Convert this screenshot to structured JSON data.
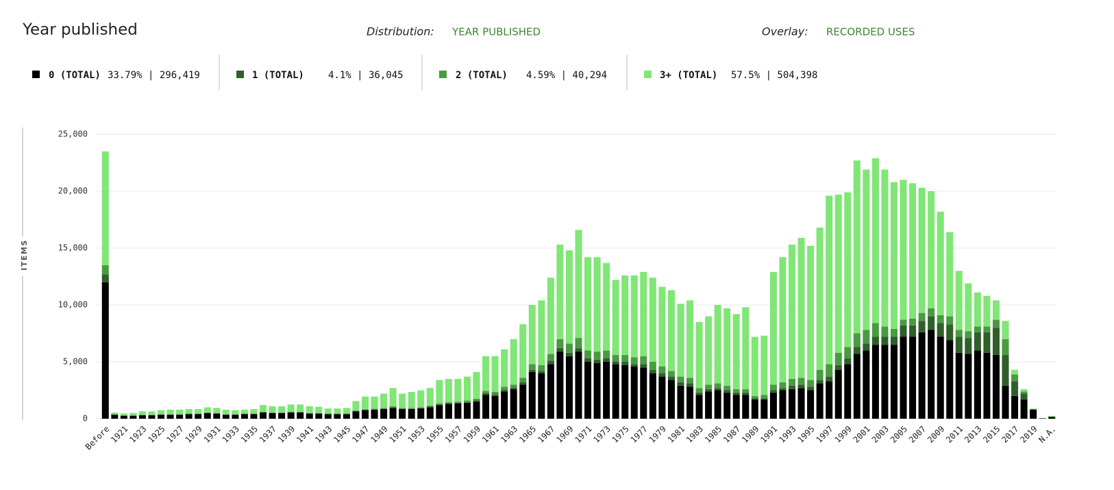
{
  "chart_data": {
    "type": "bar",
    "stacked": true,
    "title": "Year published",
    "controls": [
      {
        "label": "Distribution:",
        "value": "YEAR PUBLISHED"
      },
      {
        "label": "Overlay:",
        "value": "RECORDED USES"
      }
    ],
    "y_label": "ITEMS",
    "grid": true,
    "ylim": [
      0,
      25000
    ],
    "yticks": [
      0,
      {
        "value": 5000,
        "label": "5,000"
      },
      {
        "value": 10000,
        "label": "10,000"
      },
      {
        "value": 15000,
        "label": "15,000"
      },
      {
        "value": 20000,
        "label": "20,000"
      },
      {
        "value": 25000,
        "label": "25,000"
      }
    ],
    "categories": [
      "Before",
      null,
      "1921",
      null,
      "1923",
      null,
      "1925",
      null,
      "1927",
      null,
      "1929",
      null,
      "1931",
      null,
      "1933",
      null,
      "1935",
      null,
      "1937",
      null,
      "1939",
      null,
      "1941",
      null,
      "1943",
      null,
      "1945",
      null,
      "1947",
      null,
      "1949",
      null,
      "1951",
      null,
      "1953",
      null,
      "1955",
      null,
      "1957",
      null,
      "1959",
      null,
      "1961",
      null,
      "1963",
      null,
      "1965",
      null,
      "1967",
      null,
      "1969",
      null,
      "1971",
      null,
      "1973",
      null,
      "1975",
      null,
      "1977",
      null,
      "1979",
      null,
      "1981",
      null,
      "1983",
      null,
      "1985",
      null,
      "1987",
      null,
      "1989",
      null,
      "1991",
      null,
      "1993",
      null,
      "1995",
      null,
      "1997",
      null,
      "1999",
      null,
      "2001",
      null,
      "2003",
      null,
      "2005",
      null,
      "2007",
      null,
      "2009",
      null,
      "2011",
      null,
      "2013",
      null,
      "2015",
      null,
      "2017",
      null,
      "2019",
      null,
      "N.A."
    ],
    "series": [
      {
        "name": "0 (TOTAL)",
        "summary": "33.79% | 296,419",
        "color": "#000000",
        "values": [
          12000,
          350,
          250,
          250,
          300,
          300,
          350,
          350,
          350,
          400,
          400,
          500,
          450,
          350,
          350,
          400,
          400,
          550,
          500,
          500,
          550,
          550,
          450,
          450,
          400,
          400,
          400,
          650,
          750,
          800,
          850,
          950,
          850,
          850,
          900,
          1000,
          1200,
          1300,
          1350,
          1400,
          1500,
          2100,
          2000,
          2400,
          2600,
          3000,
          4100,
          4000,
          4800,
          5900,
          5500,
          5900,
          5000,
          4900,
          5000,
          4800,
          4700,
          4600,
          4500,
          4000,
          3700,
          3400,
          2900,
          2800,
          2100,
          2400,
          2500,
          2300,
          2100,
          2100,
          1700,
          1700,
          2300,
          2500,
          2600,
          2700,
          2500,
          3100,
          3300,
          4300,
          4800,
          5700,
          6000,
          6500,
          6500,
          6500,
          7200,
          7200,
          7600,
          7800,
          7200,
          6900,
          5800,
          5700,
          6000,
          5800,
          5600,
          2900,
          2000,
          1700,
          800,
          40,
          150
        ]
      },
      {
        "name": "1 (TOTAL)",
        "summary": "4.1% | 36,045",
        "color": "#2f5f2a",
        "values": [
          700,
          20,
          20,
          20,
          20,
          20,
          20,
          20,
          20,
          20,
          20,
          20,
          20,
          20,
          20,
          20,
          20,
          20,
          20,
          20,
          20,
          20,
          20,
          20,
          20,
          20,
          20,
          30,
          30,
          30,
          40,
          50,
          40,
          40,
          40,
          50,
          50,
          50,
          50,
          50,
          100,
          150,
          150,
          150,
          150,
          200,
          200,
          200,
          300,
          300,
          300,
          300,
          300,
          300,
          300,
          200,
          300,
          200,
          300,
          300,
          300,
          300,
          300,
          300,
          200,
          200,
          200,
          200,
          200,
          200,
          100,
          100,
          200,
          200,
          300,
          300,
          300,
          300,
          400,
          400,
          500,
          600,
          600,
          700,
          700,
          700,
          1000,
          1000,
          1000,
          1200,
          1200,
          1400,
          1400,
          1400,
          1600,
          1800,
          2400,
          2700,
          1300,
          500,
          30,
          0,
          20
        ]
      },
      {
        "name": "2 (TOTAL)",
        "summary": "4.59% | 40,294",
        "color": "#4a9a43",
        "values": [
          800,
          30,
          30,
          30,
          30,
          30,
          30,
          30,
          30,
          30,
          30,
          30,
          30,
          30,
          30,
          30,
          30,
          30,
          30,
          30,
          30,
          30,
          30,
          30,
          30,
          30,
          30,
          50,
          50,
          50,
          60,
          100,
          60,
          60,
          60,
          100,
          100,
          100,
          100,
          150,
          150,
          200,
          200,
          250,
          250,
          400,
          500,
          500,
          600,
          800,
          800,
          900,
          700,
          700,
          700,
          600,
          600,
          600,
          700,
          700,
          600,
          500,
          500,
          500,
          400,
          400,
          400,
          400,
          300,
          300,
          200,
          300,
          500,
          500,
          600,
          600,
          600,
          900,
          1100,
          1100,
          1000,
          1200,
          1200,
          1200,
          900,
          700,
          500,
          600,
          700,
          700,
          700,
          700,
          600,
          600,
          500,
          500,
          700,
          1400,
          600,
          200,
          20,
          0,
          20
        ]
      },
      {
        "name": "3+ (TOTAL)",
        "summary": "57.5% | 504,398",
        "color": "#80e676",
        "values": [
          10000,
          150,
          160,
          210,
          300,
          300,
          350,
          400,
          400,
          400,
          400,
          450,
          450,
          400,
          350,
          350,
          400,
          600,
          550,
          550,
          650,
          650,
          600,
          550,
          450,
          450,
          500,
          820,
          1120,
          1070,
          1250,
          1600,
          1250,
          1400,
          1500,
          1550,
          2050,
          2050,
          2000,
          2100,
          2350,
          3050,
          3150,
          3300,
          4000,
          4700,
          5200,
          5700,
          6700,
          8300,
          8200,
          9500,
          8200,
          8300,
          7700,
          6600,
          7000,
          7200,
          7400,
          7400,
          7000,
          7100,
          6400,
          6800,
          5800,
          6000,
          6900,
          6800,
          6600,
          7200,
          5200,
          5200,
          9900,
          11000,
          11800,
          12300,
          11800,
          12500,
          14800,
          13900,
          13600,
          15200,
          14100,
          14500,
          13800,
          12900,
          12300,
          11900,
          11000,
          10300,
          9100,
          7400,
          5200,
          4200,
          3000,
          2700,
          1700,
          1600,
          400,
          200,
          50,
          10,
          60
        ]
      }
    ]
  }
}
